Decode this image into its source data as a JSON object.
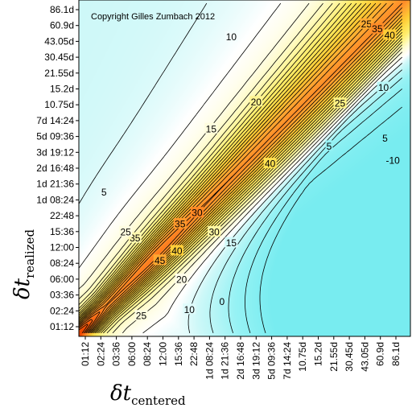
{
  "chart_data": {
    "type": "heatmap",
    "subtype": "contour",
    "copyright": "Copyright Gilles Zumbach 2012",
    "xlabel": {
      "main": "δt",
      "sub": "centered"
    },
    "ylabel": {
      "main": "δt",
      "sub": "realized"
    },
    "x_ticks": [
      "01:12",
      "02:24",
      "03:36",
      "06:00",
      "08:24",
      "12:00",
      "15:36",
      "22:48",
      "1d 08:24",
      "1d 21:36",
      "2d 16:48",
      "3d 19:12",
      "5d 09:36",
      "7d 14:24",
      "10.75d",
      "15.2d",
      "21.55d",
      "30.45d",
      "43.05d",
      "60.9d",
      "86.1d"
    ],
    "y_ticks": [
      "01:12",
      "02:24",
      "03:36",
      "06:00",
      "08:24",
      "12:00",
      "15:36",
      "22:48",
      "1d 08:24",
      "1d 21:36",
      "2d 16:48",
      "3d 19:12",
      "5d 09:36",
      "7d 14:24",
      "10.75d",
      "15.2d",
      "21.55d",
      "30.45d",
      "43.05d",
      "60.9d",
      "86.1d"
    ],
    "contour_levels": [
      -10,
      -5,
      0,
      5,
      10,
      15,
      20,
      25,
      30,
      35,
      40,
      45
    ],
    "contour_labels": [
      {
        "text": "10",
        "x": 9.4,
        "y": 18.3
      },
      {
        "text": "25",
        "x": 18.1,
        "y": 19.1
      },
      {
        "text": "35",
        "x": 18.8,
        "y": 18.8
      },
      {
        "text": "40",
        "x": 19.6,
        "y": 18.4
      },
      {
        "text": "20",
        "x": 11.0,
        "y": 14.2
      },
      {
        "text": "15",
        "x": 8.1,
        "y": 12.5
      },
      {
        "text": "40",
        "x": 11.9,
        "y": 10.3
      },
      {
        "text": "5",
        "x": 1.2,
        "y": 8.5
      },
      {
        "text": "30",
        "x": 7.2,
        "y": 7.2
      },
      {
        "text": "35",
        "x": 6.1,
        "y": 6.5
      },
      {
        "text": "30",
        "x": 8.3,
        "y": 6.0
      },
      {
        "text": "35",
        "x": 3.2,
        "y": 5.6
      },
      {
        "text": "25",
        "x": 2.6,
        "y": 6.0
      },
      {
        "text": "40",
        "x": 5.9,
        "y": 4.8
      },
      {
        "text": "45",
        "x": 4.8,
        "y": 4.2
      },
      {
        "text": "20",
        "x": 6.2,
        "y": 3.0
      },
      {
        "text": "15",
        "x": 9.4,
        "y": 5.3
      },
      {
        "text": "0",
        "x": 8.8,
        "y": 1.6
      },
      {
        "text": "10",
        "x": 6.7,
        "y": 1.1
      },
      {
        "text": "25",
        "x": 3.6,
        "y": 0.7
      },
      {
        "text": "5",
        "x": 15.7,
        "y": 11.4
      },
      {
        "text": "25",
        "x": 16.4,
        "y": 14.1
      },
      {
        "text": "10",
        "x": 19.2,
        "y": 15.1
      },
      {
        "text": "5",
        "x": 19.3,
        "y": 11.9
      },
      {
        "text": "-10",
        "x": 19.8,
        "y": 10.5
      }
    ],
    "colors": {
      "low": "#8ff0f0",
      "zero": "#ffffff",
      "mid": "#fff58a",
      "orange": "#ffc020",
      "high": "#ff7a10",
      "peak": "#f04000",
      "contour_line": "#000000"
    }
  }
}
